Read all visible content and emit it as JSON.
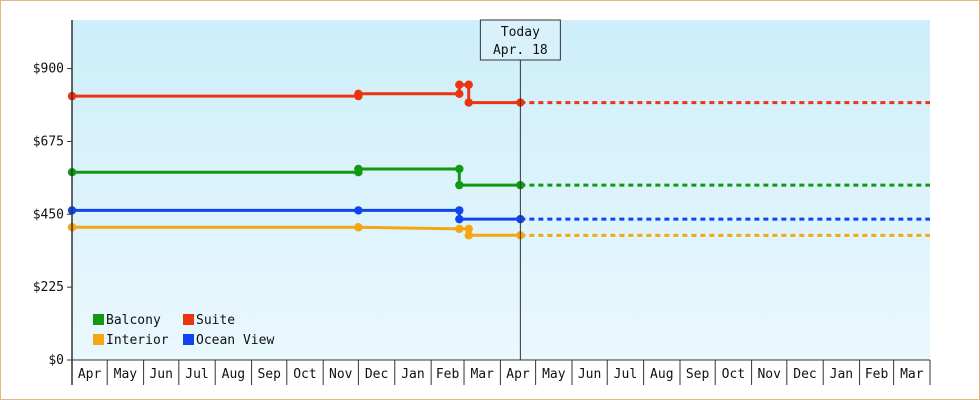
{
  "chart_data": {
    "type": "line",
    "title": "",
    "xlabel": "",
    "ylabel": "",
    "ylim": [
      0,
      1050
    ],
    "y_ticks": [
      {
        "value": 0,
        "label": "$0"
      },
      {
        "value": 225,
        "label": "$225"
      },
      {
        "value": 450,
        "label": "$450"
      },
      {
        "value": 675,
        "label": "$675"
      },
      {
        "value": 900,
        "label": "$900"
      }
    ],
    "x_range": [
      "2014-04-01",
      "2016-04-01"
    ],
    "months": [
      {
        "date": "2014-04-01",
        "label": "Apr"
      },
      {
        "date": "2014-05-01",
        "label": "May"
      },
      {
        "date": "2014-06-01",
        "label": "Jun"
      },
      {
        "date": "2014-07-01",
        "label": "Jul"
      },
      {
        "date": "2014-08-01",
        "label": "Aug"
      },
      {
        "date": "2014-09-01",
        "label": "Sep"
      },
      {
        "date": "2014-10-01",
        "label": "Oct"
      },
      {
        "date": "2014-11-01",
        "label": "Nov"
      },
      {
        "date": "2014-12-01",
        "label": "Dec"
      },
      {
        "date": "2015-01-01",
        "label": "Jan"
      },
      {
        "date": "2015-02-01",
        "label": "Feb"
      },
      {
        "date": "2015-03-01",
        "label": "Mar"
      },
      {
        "date": "2015-04-01",
        "label": "Apr"
      },
      {
        "date": "2015-05-01",
        "label": "May"
      },
      {
        "date": "2015-06-01",
        "label": "Jun"
      },
      {
        "date": "2015-07-01",
        "label": "Jul"
      },
      {
        "date": "2015-08-01",
        "label": "Aug"
      },
      {
        "date": "2015-09-01",
        "label": "Sep"
      },
      {
        "date": "2015-10-01",
        "label": "Oct"
      },
      {
        "date": "2015-11-01",
        "label": "Nov"
      },
      {
        "date": "2015-12-01",
        "label": "Dec"
      },
      {
        "date": "2016-01-01",
        "label": "Jan"
      },
      {
        "date": "2016-02-01",
        "label": "Feb"
      },
      {
        "date": "2016-03-01",
        "label": "Mar"
      }
    ],
    "today": {
      "date": "2015-04-18",
      "title": "Today",
      "label": "Apr. 18"
    },
    "projection_end": "2016-04-01",
    "grid": false,
    "legend_position": "bottom-left",
    "background_gradient": [
      "#cdeefa",
      "#eaf8fd"
    ],
    "series": [
      {
        "name": "Balcony",
        "color": "#119911",
        "points": [
          [
            "2014-04-01",
            580
          ],
          [
            "2014-12-01",
            580
          ],
          [
            "2014-12-01",
            590
          ],
          [
            "2015-02-25",
            590
          ],
          [
            "2015-02-25",
            540
          ],
          [
            "2015-04-18",
            540
          ]
        ],
        "markers": [
          [
            "2014-04-01",
            580
          ],
          [
            "2014-12-01",
            580
          ],
          [
            "2014-12-01",
            590
          ],
          [
            "2015-02-25",
            590
          ],
          [
            "2015-02-25",
            540
          ],
          [
            "2015-04-18",
            540
          ]
        ]
      },
      {
        "name": "Suite",
        "color": "#ee3311",
        "points": [
          [
            "2014-04-01",
            815
          ],
          [
            "2014-12-01",
            815
          ],
          [
            "2014-12-01",
            822
          ],
          [
            "2015-02-25",
            822
          ],
          [
            "2015-02-25",
            850
          ],
          [
            "2015-03-05",
            850
          ],
          [
            "2015-03-05",
            795
          ],
          [
            "2015-04-18",
            795
          ]
        ],
        "markers": [
          [
            "2014-04-01",
            815
          ],
          [
            "2014-12-01",
            815
          ],
          [
            "2014-12-01",
            822
          ],
          [
            "2015-02-25",
            822
          ],
          [
            "2015-02-25",
            850
          ],
          [
            "2015-03-05",
            850
          ],
          [
            "2015-03-05",
            795
          ],
          [
            "2015-04-18",
            795
          ]
        ]
      },
      {
        "name": "Interior",
        "color": "#f5a612",
        "points": [
          [
            "2014-04-01",
            410
          ],
          [
            "2014-12-01",
            410
          ],
          [
            "2015-02-25",
            405
          ],
          [
            "2015-03-05",
            405
          ],
          [
            "2015-03-05",
            385
          ],
          [
            "2015-04-18",
            385
          ]
        ],
        "markers": [
          [
            "2014-04-01",
            410
          ],
          [
            "2014-12-01",
            410
          ],
          [
            "2015-02-25",
            405
          ],
          [
            "2015-03-05",
            405
          ],
          [
            "2015-03-05",
            385
          ],
          [
            "2015-04-18",
            385
          ]
        ]
      },
      {
        "name": "Ocean View",
        "color": "#1144ee",
        "points": [
          [
            "2014-04-01",
            462
          ],
          [
            "2014-12-01",
            462
          ],
          [
            "2015-02-25",
            462
          ],
          [
            "2015-02-25",
            435
          ],
          [
            "2015-04-18",
            435
          ]
        ],
        "markers": [
          [
            "2014-04-01",
            462
          ],
          [
            "2014-12-01",
            462
          ],
          [
            "2015-02-25",
            462
          ],
          [
            "2015-02-25",
            435
          ],
          [
            "2015-04-18",
            435
          ]
        ]
      }
    ],
    "legend": [
      {
        "name": "Balcony",
        "color": "#119911"
      },
      {
        "name": "Suite",
        "color": "#ee3311"
      },
      {
        "name": "Interior",
        "color": "#f5a612"
      },
      {
        "name": "Ocean View",
        "color": "#1144ee"
      }
    ]
  }
}
